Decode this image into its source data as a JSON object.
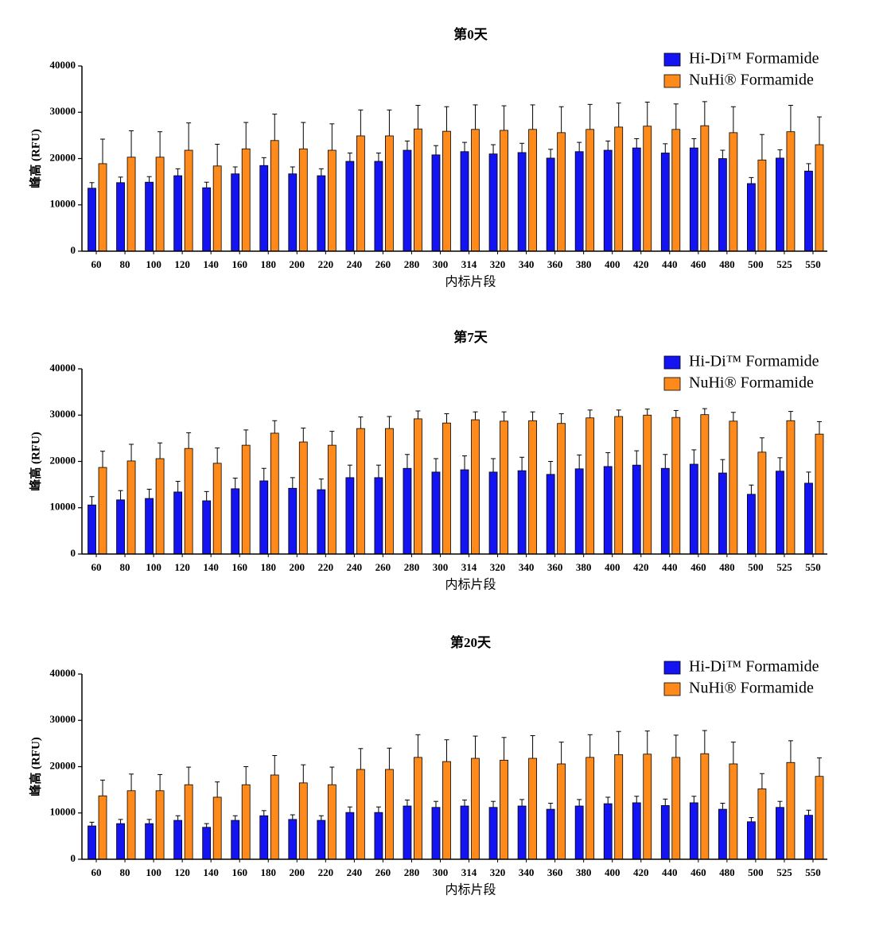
{
  "chart_data": [
    {
      "type": "bar",
      "title": "第0天",
      "xlabel": "内标片段",
      "ylabel": "峰高 (RFU)",
      "categories": [
        "60",
        "80",
        "100",
        "120",
        "140",
        "160",
        "180",
        "200",
        "220",
        "240",
        "260",
        "280",
        "300",
        "314",
        "320",
        "340",
        "360",
        "380",
        "400",
        "420",
        "440",
        "460",
        "480",
        "500",
        "525",
        "550"
      ],
      "ylim": [
        0,
        40000
      ],
      "yticks": [
        0,
        10000,
        20000,
        30000,
        40000
      ],
      "legend": "upper right",
      "series": [
        {
          "name": "Hi-Di™ Formamide",
          "color": "#1414f2",
          "values": [
            13600,
            14800,
            14900,
            16300,
            13700,
            16700,
            18500,
            16700,
            16300,
            19400,
            19400,
            21800,
            20800,
            21500,
            21000,
            21300,
            20100,
            21500,
            21800,
            22300,
            21200,
            22300,
            20000,
            14600,
            20100,
            17300
          ],
          "errors": [
            1200,
            1200,
            1200,
            1500,
            1200,
            1500,
            1700,
            1500,
            1500,
            1800,
            1800,
            2000,
            2000,
            2000,
            2000,
            2000,
            1900,
            2000,
            2000,
            2000,
            2000,
            2000,
            1800,
            1300,
            1800,
            1600
          ]
        },
        {
          "name": "NuHi® Formamide",
          "color": "#ff8a1c",
          "values": [
            18900,
            20300,
            20300,
            21800,
            18400,
            22100,
            23900,
            22100,
            21800,
            24900,
            24900,
            26400,
            25900,
            26300,
            26100,
            26300,
            25600,
            26300,
            26800,
            27000,
            26300,
            27100,
            25600,
            19700,
            25800,
            23000
          ],
          "errors": [
            5300,
            5700,
            5500,
            5900,
            4700,
            5700,
            5700,
            5700,
            5700,
            5600,
            5600,
            5100,
            5300,
            5300,
            5300,
            5300,
            5600,
            5400,
            5200,
            5200,
            5500,
            5200,
            5600,
            5500,
            5700,
            6000
          ]
        }
      ]
    },
    {
      "type": "bar",
      "title": "第7天",
      "xlabel": "内标片段",
      "ylabel": "峰高 (RFU)",
      "categories": [
        "60",
        "80",
        "100",
        "120",
        "140",
        "160",
        "180",
        "200",
        "220",
        "240",
        "260",
        "280",
        "300",
        "314",
        "320",
        "340",
        "360",
        "380",
        "400",
        "420",
        "440",
        "460",
        "480",
        "500",
        "525",
        "550"
      ],
      "ylim": [
        0,
        40000
      ],
      "yticks": [
        0,
        10000,
        20000,
        30000,
        40000
      ],
      "legend": "upper right",
      "series": [
        {
          "name": "Hi-Di™ Formamide",
          "color": "#1414f2",
          "values": [
            10600,
            11700,
            12000,
            13400,
            11500,
            14100,
            15800,
            14200,
            13900,
            16500,
            16500,
            18500,
            17700,
            18200,
            17700,
            18000,
            17200,
            18400,
            18900,
            19200,
            18500,
            19400,
            17500,
            12900,
            17900,
            15300
          ],
          "errors": [
            1800,
            2000,
            2000,
            2300,
            2000,
            2300,
            2700,
            2300,
            2300,
            2700,
            2700,
            3000,
            2900,
            3000,
            2900,
            2900,
            2800,
            3000,
            3000,
            3100,
            3000,
            3100,
            2900,
            2000,
            2900,
            2400
          ]
        },
        {
          "name": "NuHi® Formamide",
          "color": "#ff8a1c",
          "values": [
            18700,
            20100,
            20600,
            22800,
            19600,
            23500,
            26100,
            24200,
            23500,
            27100,
            27100,
            29200,
            28300,
            29000,
            28700,
            28800,
            28200,
            29400,
            29700,
            30000,
            29500,
            30100,
            28700,
            22000,
            28800,
            25900
          ],
          "errors": [
            3500,
            3600,
            3400,
            3400,
            3300,
            3300,
            2700,
            3000,
            3000,
            2500,
            2600,
            1700,
            2000,
            1700,
            2000,
            1900,
            2100,
            1700,
            1400,
            1300,
            1500,
            1300,
            1900,
            3100,
            2000,
            2700
          ]
        }
      ]
    },
    {
      "type": "bar",
      "title": "第20天",
      "xlabel": "内标片段",
      "ylabel": "峰高 (RFU)",
      "categories": [
        "60",
        "80",
        "100",
        "120",
        "140",
        "160",
        "180",
        "200",
        "220",
        "240",
        "260",
        "280",
        "300",
        "314",
        "320",
        "340",
        "360",
        "380",
        "400",
        "420",
        "440",
        "460",
        "480",
        "500",
        "525",
        "550"
      ],
      "ylim": [
        0,
        40000
      ],
      "yticks": [
        0,
        10000,
        20000,
        30000,
        40000
      ],
      "legend": "upper right",
      "series": [
        {
          "name": "Hi-Di™ Formamide",
          "color": "#1414f2",
          "values": [
            7200,
            7700,
            7700,
            8400,
            6900,
            8400,
            9400,
            8600,
            8400,
            10100,
            10100,
            11500,
            11200,
            11500,
            11200,
            11500,
            10800,
            11500,
            12000,
            12200,
            11600,
            12200,
            10800,
            8100,
            11200,
            9500
          ],
          "errors": [
            800,
            900,
            900,
            1000,
            800,
            1000,
            1100,
            1000,
            1000,
            1200,
            1200,
            1300,
            1300,
            1300,
            1300,
            1400,
            1300,
            1400,
            1400,
            1400,
            1400,
            1400,
            1300,
            900,
            1300,
            1100
          ]
        },
        {
          "name": "NuHi® Formamide",
          "color": "#ff8a1c",
          "values": [
            13700,
            14800,
            14800,
            16100,
            13400,
            16100,
            18200,
            16500,
            16100,
            19400,
            19400,
            22000,
            21100,
            21800,
            21400,
            21800,
            20600,
            22000,
            22600,
            22700,
            22000,
            22800,
            20600,
            15200,
            20900,
            17900
          ],
          "errors": [
            3400,
            3600,
            3500,
            3800,
            3300,
            3900,
            4200,
            3900,
            3800,
            4500,
            4600,
            4900,
            4700,
            4800,
            4900,
            4900,
            4700,
            4900,
            5000,
            5000,
            4800,
            5000,
            4700,
            3300,
            4700,
            4000
          ]
        }
      ]
    }
  ]
}
